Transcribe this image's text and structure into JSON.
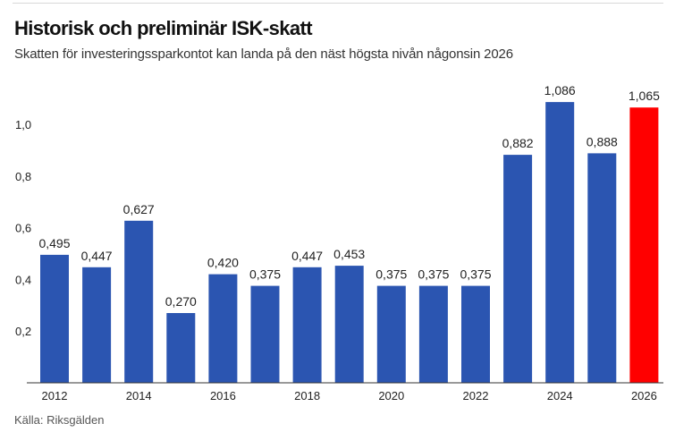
{
  "header": {
    "title": "Historisk och preliminär ISK-skatt",
    "subtitle": "Skatten för investeringssparkontot kan landa på den näst högsta nivån någonsin 2026"
  },
  "footer": {
    "source": "Källa: Riksgälden"
  },
  "chart_data": {
    "type": "bar",
    "title": "Historisk och preliminär ISK-skatt",
    "subtitle": "Skatten för investeringssparkontot kan landa på den näst högsta nivån någonsin 2026",
    "xlabel": "",
    "ylabel": "",
    "ylim": [
      0,
      1.1
    ],
    "grid": false,
    "categories": [
      "2012",
      "2013",
      "2014",
      "2015",
      "2016",
      "2017",
      "2018",
      "2019",
      "2020",
      "2021",
      "2022",
      "2023",
      "2024",
      "2025",
      "2026"
    ],
    "x_tick_labels": [
      "2012",
      "2014",
      "2016",
      "2018",
      "2020",
      "2022",
      "2024",
      "2026"
    ],
    "y_ticks": [
      0.2,
      0.4,
      0.6,
      0.8,
      1.0
    ],
    "y_tick_labels": [
      "0,2",
      "0,4",
      "0,6",
      "0,8",
      "1,0"
    ],
    "series": [
      {
        "name": "ISK-skatt",
        "values": [
          0.495,
          0.447,
          0.627,
          0.27,
          0.42,
          0.375,
          0.447,
          0.453,
          0.375,
          0.375,
          0.375,
          0.882,
          1.086,
          0.888,
          1.065
        ],
        "labels": [
          "0,495",
          "0,447",
          "0,627",
          "0,270",
          "0,420",
          "0,375",
          "0,447",
          "0,453",
          "0,375",
          "0,375",
          "0,375",
          "0,882",
          "1,086",
          "0,888",
          "1,065"
        ]
      }
    ],
    "bar_colors": [
      "#2b55b1",
      "#2b55b1",
      "#2b55b1",
      "#2b55b1",
      "#2b55b1",
      "#2b55b1",
      "#2b55b1",
      "#2b55b1",
      "#2b55b1",
      "#2b55b1",
      "#2b55b1",
      "#2b55b1",
      "#2b55b1",
      "#2b55b1",
      "#ff0000"
    ],
    "colors": {
      "historical": "#2b55b1",
      "preliminary": "#ff0000",
      "text": "#222222",
      "axis": "#333333"
    }
  }
}
